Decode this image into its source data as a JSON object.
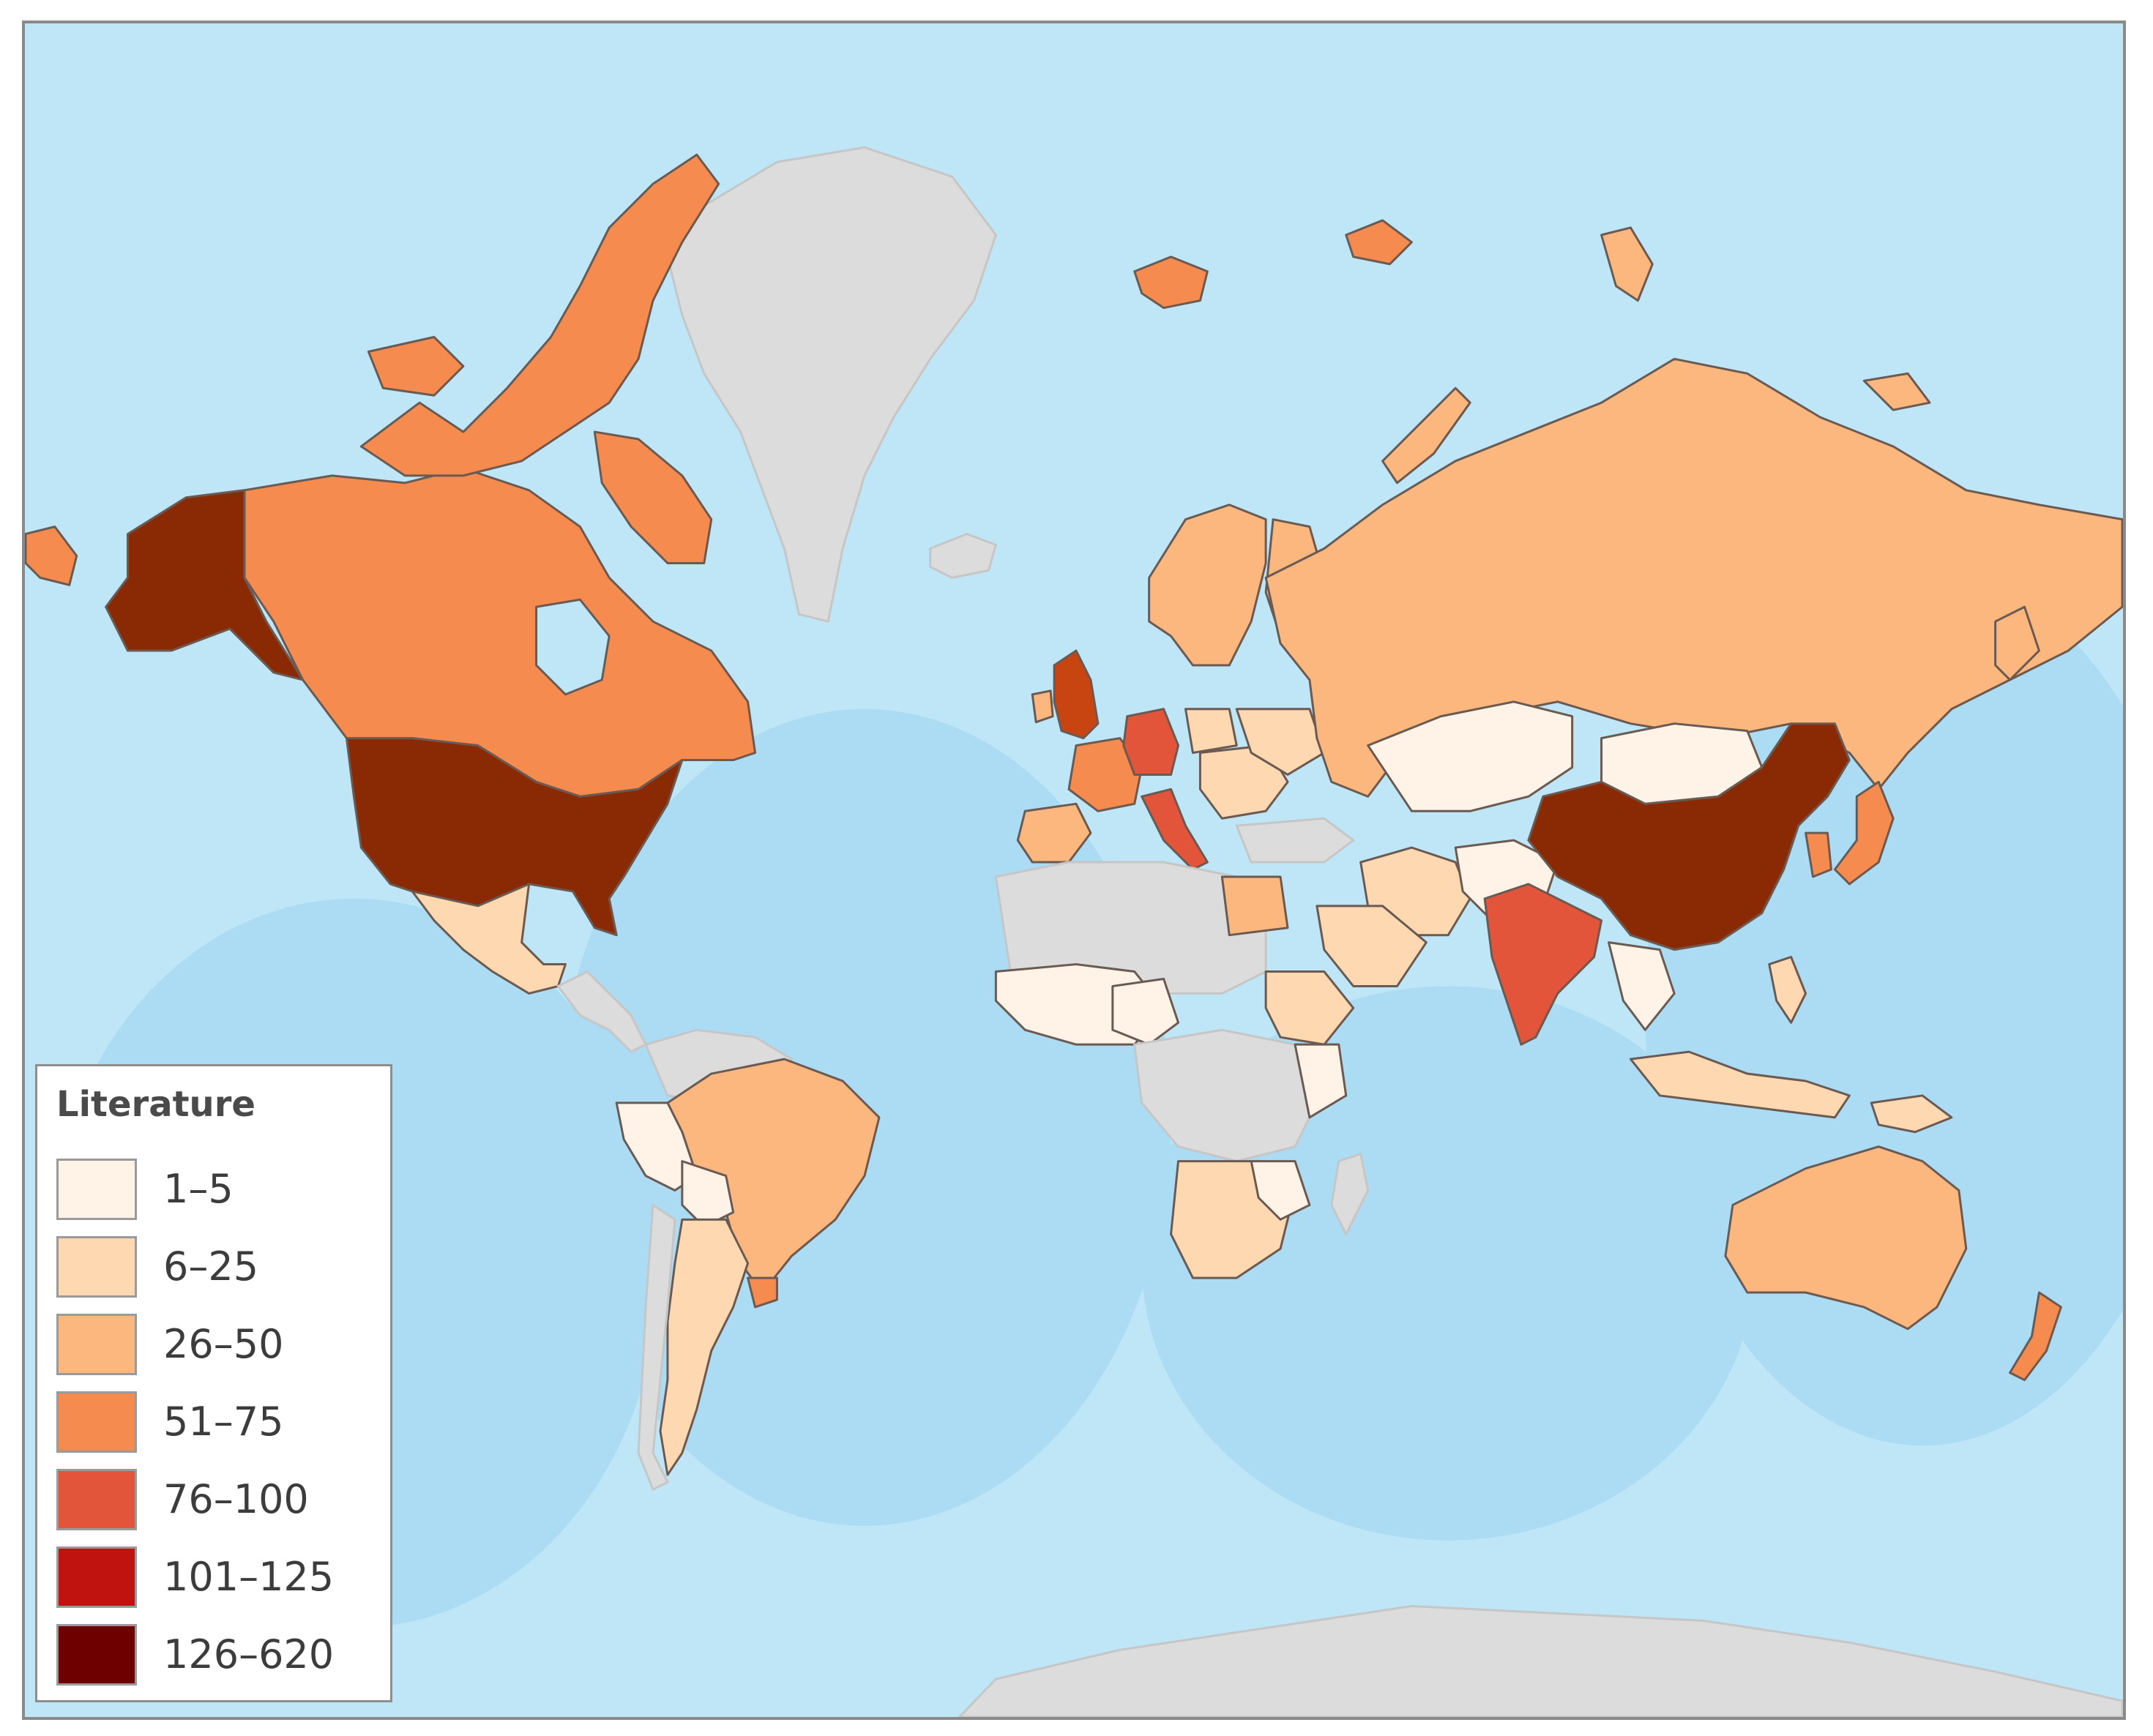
{
  "legend": {
    "title": "Literature",
    "classes": [
      {
        "label": "1–5",
        "color": "#fff3e8"
      },
      {
        "label": "6–25",
        "color": "#fdd8b1"
      },
      {
        "label": "26–50",
        "color": "#fbb77d"
      },
      {
        "label": "51–75",
        "color": "#f68b4f"
      },
      {
        "label": "76–100",
        "color": "#e2553a"
      },
      {
        "label": "101–125",
        "color": "#c0120f"
      },
      {
        "label": "126–620",
        "color": "#6e0000"
      }
    ]
  },
  "colors": {
    "ocean": "#bfe6f7",
    "ocean_deep": "#a7dbf4",
    "no_data": "#dcdcdc",
    "border": "#6b5a52"
  }
}
